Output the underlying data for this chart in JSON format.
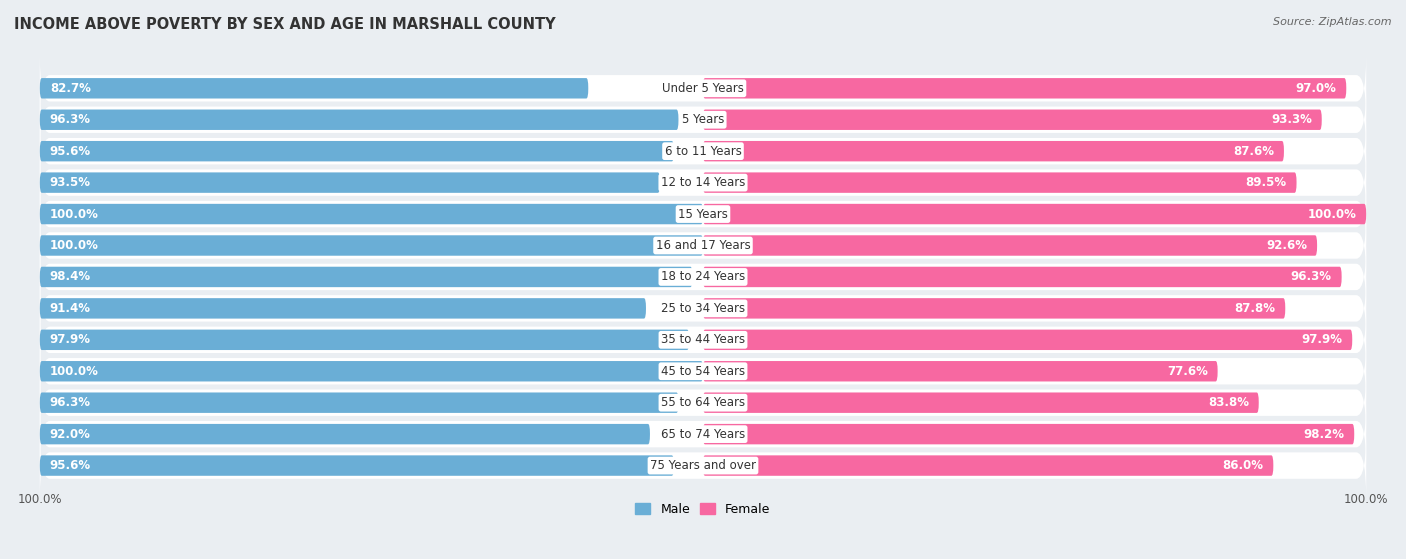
{
  "title": "INCOME ABOVE POVERTY BY SEX AND AGE IN MARSHALL COUNTY",
  "source": "Source: ZipAtlas.com",
  "categories": [
    "Under 5 Years",
    "5 Years",
    "6 to 11 Years",
    "12 to 14 Years",
    "15 Years",
    "16 and 17 Years",
    "18 to 24 Years",
    "25 to 34 Years",
    "35 to 44 Years",
    "45 to 54 Years",
    "55 to 64 Years",
    "65 to 74 Years",
    "75 Years and over"
  ],
  "male_values": [
    82.7,
    96.3,
    95.6,
    93.5,
    100.0,
    100.0,
    98.4,
    91.4,
    97.9,
    100.0,
    96.3,
    92.0,
    95.6
  ],
  "female_values": [
    97.0,
    93.3,
    87.6,
    89.5,
    100.0,
    92.6,
    96.3,
    87.8,
    97.9,
    77.6,
    83.8,
    98.2,
    86.0
  ],
  "male_color": "#6aaed6",
  "female_color": "#f768a1",
  "male_label": "Male",
  "female_label": "Female",
  "background_color": "#eaeef2",
  "row_bg_color": "#dde3ea",
  "title_fontsize": 10.5,
  "value_fontsize": 8.5,
  "category_fontsize": 8.5,
  "source_fontsize": 8.0,
  "legend_fontsize": 9.0,
  "xlabel_fontsize": 8.5
}
